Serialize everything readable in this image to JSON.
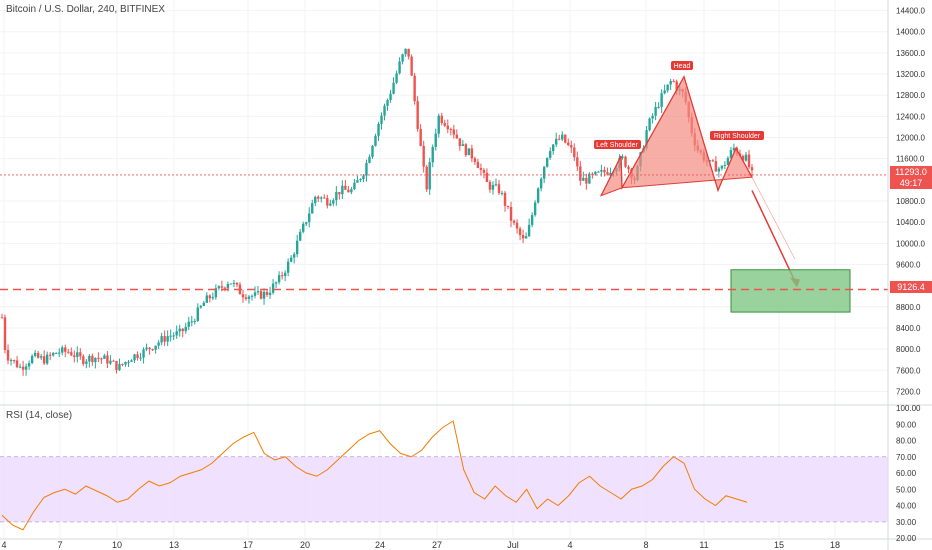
{
  "header": {
    "symbol_title": "Bitcoin / U.S. Dollar, 240, BITFINEX"
  },
  "price_axis": {
    "ticks": [
      "14400.0",
      "14000.0",
      "13600.0",
      "13200.0",
      "12800.0",
      "12400.0",
      "12000.0",
      "11600.0",
      "10800.0",
      "10400.0",
      "10000.0",
      "9600.0",
      "8800.0",
      "8400.0",
      "8000.0",
      "7600.0",
      "7200.0"
    ],
    "current_price": "11293.0",
    "countdown": "49:17",
    "target_price": "9126.4"
  },
  "rsi_panel": {
    "title": "RSI (14, close)",
    "ticks": [
      "100.00",
      "90.00",
      "80.00",
      "70.00",
      "60.00",
      "50.00",
      "40.00",
      "30.00",
      "20.00"
    ]
  },
  "time_axis": {
    "labels": [
      "4",
      "7",
      "10",
      "13",
      "17",
      "20",
      "24",
      "27",
      "Jul",
      "4",
      "8",
      "11",
      "15",
      "18"
    ]
  },
  "annotations": {
    "left_shoulder": "Left Shoulder",
    "head": "Head",
    "right_shoulder": "Right Shoulder"
  },
  "colors": {
    "up": "#26a69a",
    "down": "#ef5350",
    "pattern_fill": "#f28b82",
    "pattern_stroke": "#e53935",
    "target_box": "#81c784",
    "rsi_line": "#f57c00",
    "rsi_band": "#e9d5ff",
    "level_line": "#ef5350"
  },
  "chart_data": [
    {
      "type": "candlestick",
      "title": "Bitcoin / U.S. Dollar, 240, BITFINEX",
      "ylim": [
        7000,
        14600
      ],
      "x_dates": [
        "Jun 4",
        "Jun 7",
        "Jun 10",
        "Jun 13",
        "Jun 17",
        "Jun 20",
        "Jun 24",
        "Jun 27",
        "Jul 1",
        "Jul 4",
        "Jul 8",
        "Jul 11",
        "Jul 15",
        "Jul 18"
      ],
      "price_path": [
        [
          0,
          8600
        ],
        [
          0.3,
          7900
        ],
        [
          1.5,
          7650
        ],
        [
          2.5,
          7850
        ],
        [
          3.5,
          7800
        ],
        [
          4.5,
          7950
        ],
        [
          5.5,
          7950
        ],
        [
          6.5,
          7800
        ],
        [
          7.5,
          7850
        ],
        [
          8.5,
          7800
        ],
        [
          9.5,
          7650
        ],
        [
          10.5,
          7850
        ],
        [
          11.5,
          7950
        ],
        [
          12.5,
          8100
        ],
        [
          13.5,
          8250
        ],
        [
          14.5,
          8300
        ],
        [
          15.5,
          8550
        ],
        [
          16.5,
          8900
        ],
        [
          17.5,
          9100
        ],
        [
          18.5,
          9300
        ],
        [
          19.5,
          9050
        ],
        [
          20.5,
          9000
        ],
        [
          21.5,
          9050
        ],
        [
          22.5,
          9300
        ],
        [
          23.5,
          9700
        ],
        [
          24.5,
          10300
        ],
        [
          25.5,
          10900
        ],
        [
          26.5,
          10800
        ],
        [
          27.5,
          11000
        ],
        [
          28.5,
          11000
        ],
        [
          29.5,
          11400
        ],
        [
          30.5,
          12200
        ],
        [
          31.5,
          12800
        ],
        [
          32.5,
          13500
        ],
        [
          33.0,
          13700
        ],
        [
          33.5,
          12800
        ],
        [
          34.5,
          11000
        ],
        [
          35.0,
          11800
        ],
        [
          35.5,
          12400
        ],
        [
          36.5,
          12200
        ],
        [
          37.5,
          11800
        ],
        [
          38.5,
          11600
        ],
        [
          39.5,
          11100
        ],
        [
          40.5,
          11000
        ],
        [
          41.5,
          10400
        ],
        [
          42.5,
          10000
        ],
        [
          43.0,
          10400
        ],
        [
          43.5,
          11000
        ],
        [
          44.5,
          11800
        ],
        [
          45.5,
          12000
        ],
        [
          46.5,
          11700
        ],
        [
          47.0,
          11200
        ],
        [
          47.5,
          11200
        ],
        [
          48.5,
          11300
        ],
        [
          49.5,
          11400
        ],
        [
          50.5,
          11600
        ],
        [
          51.5,
          11200
        ],
        [
          52.5,
          12200
        ],
        [
          53.5,
          12700
        ],
        [
          54.5,
          13100
        ],
        [
          55.0,
          12900
        ],
        [
          55.5,
          12800
        ],
        [
          56.0,
          12200
        ],
        [
          56.5,
          11800
        ],
        [
          57.5,
          11500
        ],
        [
          58.5,
          11400
        ],
        [
          59.0,
          11600
        ],
        [
          59.5,
          11800
        ],
        [
          60.5,
          11600
        ],
        [
          61.0,
          11293
        ]
      ],
      "levels": [
        {
          "price": 9126.4,
          "label": "9126.4"
        },
        {
          "price": 11293.0,
          "label": "11293.0"
        }
      ],
      "head_and_shoulders": {
        "left_shoulder": 11650,
        "head": 13150,
        "right_shoulder": 11800,
        "neckline": [
          11000,
          11200
        ],
        "target": 9126.4
      }
    },
    {
      "type": "line",
      "title": "RSI (14, close)",
      "ylim": [
        20,
        100
      ],
      "band": [
        30,
        70
      ],
      "series": [
        {
          "values": [
            34,
            28,
            25,
            36,
            45,
            48,
            50,
            47,
            52,
            49,
            46,
            42,
            44,
            50,
            55,
            52,
            54,
            58,
            60,
            62,
            66,
            72,
            78,
            82,
            85,
            72,
            68,
            70,
            64,
            60,
            58,
            62,
            68,
            74,
            80,
            84,
            86,
            78,
            72,
            70,
            74,
            82,
            88,
            92,
            62,
            48,
            44,
            52,
            46,
            42,
            50,
            38,
            44,
            40,
            46,
            54,
            58,
            52,
            48,
            44,
            50,
            52,
            56,
            64,
            70,
            66,
            50,
            44,
            40,
            46,
            44,
            42
          ]
        }
      ]
    }
  ]
}
